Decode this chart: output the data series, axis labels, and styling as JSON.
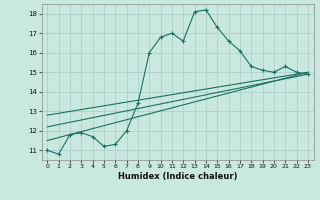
{
  "xlabel": "Humidex (Indice chaleur)",
  "bg_color": "#c8e8e0",
  "line_color": "#1a7060",
  "grid_color": "#a8ccc8",
  "xlim": [
    -0.5,
    23.5
  ],
  "ylim": [
    10.5,
    18.5
  ],
  "yticks": [
    11,
    12,
    13,
    14,
    15,
    16,
    17,
    18
  ],
  "xticks": [
    0,
    1,
    2,
    3,
    4,
    5,
    6,
    7,
    8,
    9,
    10,
    11,
    12,
    13,
    14,
    15,
    16,
    17,
    18,
    19,
    20,
    21,
    22,
    23
  ],
  "curve1_x": [
    0,
    1,
    2,
    3,
    4,
    5,
    6,
    7,
    8,
    9,
    10,
    11,
    12,
    13,
    14,
    15,
    16,
    17,
    18,
    19,
    20,
    21,
    22,
    23
  ],
  "curve1_y": [
    11.0,
    10.8,
    11.8,
    11.9,
    11.7,
    11.2,
    11.3,
    12.0,
    13.4,
    16.0,
    16.8,
    17.0,
    16.6,
    18.1,
    18.2,
    17.3,
    16.6,
    16.1,
    15.3,
    15.1,
    15.0,
    15.3,
    15.0,
    14.9
  ],
  "curve2_x": [
    0,
    23
  ],
  "curve2_y": [
    11.5,
    15.0
  ],
  "curve3_x": [
    0,
    23
  ],
  "curve3_y": [
    12.2,
    14.9
  ],
  "curve4_x": [
    0,
    23
  ],
  "curve4_y": [
    12.8,
    15.0
  ]
}
